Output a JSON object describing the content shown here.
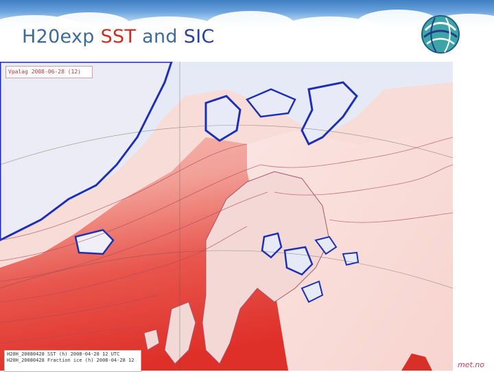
{
  "header": {
    "title_prefix": "H20exp",
    "title_sst": "SST",
    "title_and": "and",
    "title_sic": "SIC"
  },
  "map": {
    "stamp_top": "Vpalag 2008-06-28 (12)",
    "stamp_bottom_line1": "H20H_20080428 SST (h) 2008-04-28 12 UTC",
    "stamp_bottom_line2": "H20H_20080428 Fraction ice (h) 2008-04-28 12",
    "colors": {
      "sea_ice": "#e6e9f6",
      "sst_warm": "#e23b33",
      "sst_cool": "#fbe9e6",
      "ice_edge": "#1f2fb5",
      "contour": "#b0485a"
    }
  },
  "logo": {
    "icon": "globe-swirl-icon"
  },
  "footer": {
    "credit": "met.no"
  }
}
